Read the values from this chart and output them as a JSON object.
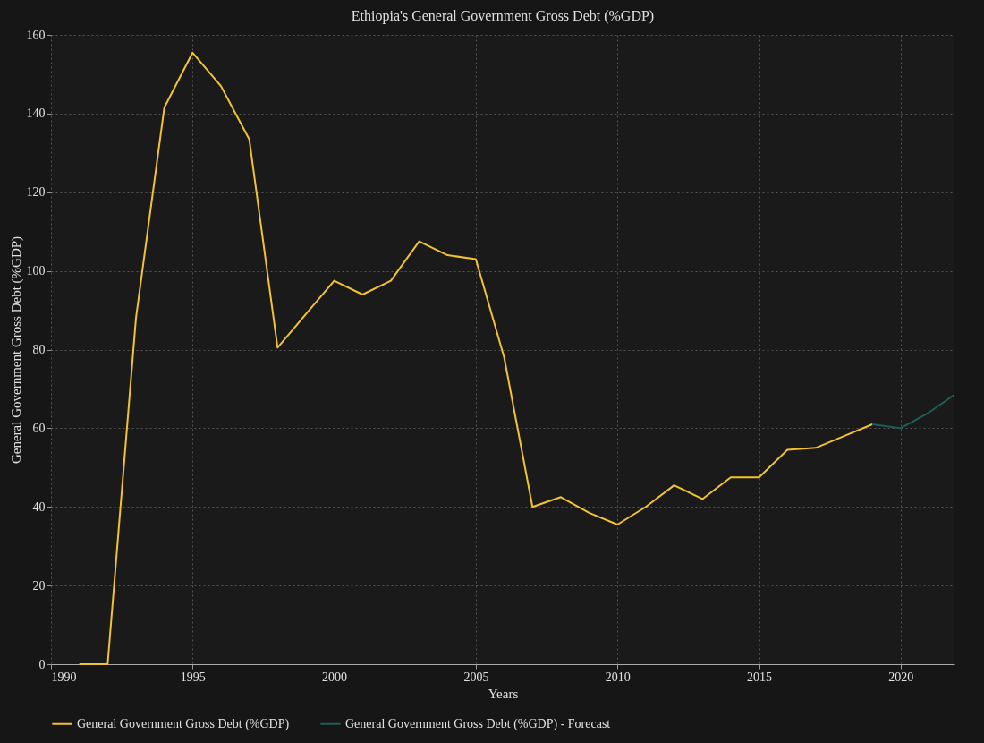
{
  "chart_data": {
    "type": "line",
    "title": "Ethiopia's General Government Gross Debt (%GDP)",
    "xlabel": "Years",
    "ylabel": "General Government Gross Debt (%GDP)",
    "series": [
      {
        "name": "General Government Gross Debt (%GDP)",
        "color": "#f2c230",
        "x": [
          1991,
          1992,
          1993,
          1994,
          1995,
          1996,
          1997,
          1998,
          1999,
          2000,
          2001,
          2002,
          2003,
          2004,
          2005,
          2006,
          2007,
          2008,
          2009,
          2010,
          2011,
          2012,
          2013,
          2014,
          2015,
          2016,
          2017,
          2018,
          2019
        ],
        "values": [
          0,
          0,
          88,
          141.5,
          155.5,
          147,
          133.5,
          80.5,
          89,
          97.5,
          94,
          97.5,
          107.5,
          104,
          103,
          78,
          40,
          42.5,
          38.5,
          35.5,
          40,
          45.5,
          42,
          47.5,
          47.5,
          54.5,
          55,
          58,
          61
        ]
      },
      {
        "name": "General Government Gross Debt (%GDP) - Forecast",
        "color": "#1f5f5a",
        "x": [
          2019,
          2020,
          2021,
          2021.9
        ],
        "values": [
          61,
          60,
          64,
          68.5
        ]
      }
    ],
    "xlim": [
      1990,
      2021.9
    ],
    "xticks": [
      1990,
      1995,
      2000,
      2005,
      2010,
      2015,
      2020
    ],
    "ylim": [
      0,
      160
    ],
    "yticks": [
      0,
      20,
      40,
      60,
      80,
      100,
      120,
      140,
      160
    ],
    "grid": true,
    "legend": "bottom"
  }
}
